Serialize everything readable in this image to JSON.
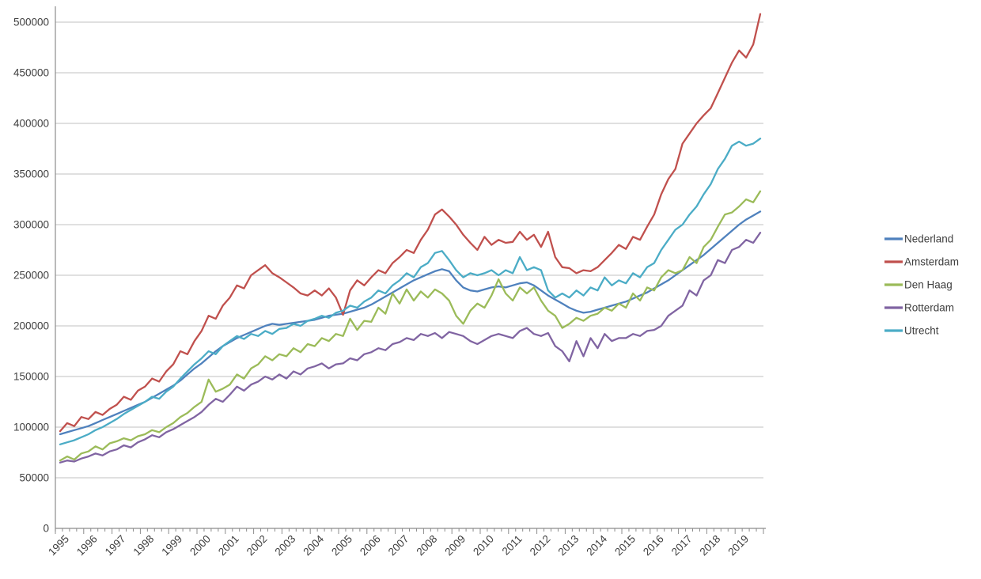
{
  "chart_data": {
    "type": "line",
    "title": "",
    "xlabel": "",
    "ylabel": "",
    "ylim": [
      0,
      500000
    ],
    "y_tick_step": 50000,
    "grid": "horizontal",
    "legend_position": "right",
    "points_per_year": 4,
    "x_tick_labels": [
      "1995",
      "1996",
      "1997",
      "1998",
      "1999",
      "2000",
      "2001",
      "2002",
      "2003",
      "2004",
      "2005",
      "2006",
      "2007",
      "2008",
      "2009",
      "2010",
      "2011",
      "2012",
      "2013",
      "2014",
      "2015",
      "2016",
      "2017",
      "2018",
      "2019"
    ],
    "series": [
      {
        "name": "Nederland",
        "color": "#4F81BD",
        "values": [
          93000,
          95000,
          97000,
          99000,
          101000,
          104000,
          107000,
          110000,
          113000,
          116000,
          119000,
          122000,
          125000,
          129000,
          133000,
          137000,
          141000,
          146000,
          152000,
          158000,
          163000,
          169000,
          175000,
          180000,
          184000,
          188000,
          191000,
          194000,
          197000,
          200000,
          202000,
          201000,
          202000,
          203000,
          204000,
          205000,
          206000,
          208000,
          210000,
          211000,
          212000,
          214000,
          216000,
          218000,
          221000,
          225000,
          229000,
          233000,
          237000,
          241000,
          245000,
          248000,
          251000,
          254000,
          256000,
          254000,
          245000,
          238000,
          235000,
          234000,
          236000,
          238000,
          239000,
          238000,
          240000,
          242000,
          243000,
          240000,
          235000,
          230000,
          226000,
          222000,
          218000,
          215000,
          213000,
          214000,
          216000,
          218000,
          220000,
          222000,
          224000,
          227000,
          230000,
          233000,
          237000,
          241000,
          245000,
          250000,
          255000,
          260000,
          265000,
          270000,
          276000,
          282000,
          288000,
          294000,
          300000,
          305000,
          309000,
          313000
        ]
      },
      {
        "name": "Amsterdam",
        "color": "#C0504D",
        "values": [
          96000,
          104000,
          101000,
          110000,
          108000,
          115000,
          112000,
          118000,
          122000,
          130000,
          127000,
          136000,
          140000,
          148000,
          145000,
          155000,
          162000,
          175000,
          172000,
          185000,
          195000,
          210000,
          207000,
          220000,
          228000,
          240000,
          237000,
          250000,
          255000,
          260000,
          252000,
          248000,
          243000,
          238000,
          232000,
          230000,
          235000,
          230000,
          237000,
          228000,
          211000,
          235000,
          245000,
          240000,
          248000,
          255000,
          252000,
          262000,
          268000,
          275000,
          272000,
          285000,
          295000,
          310000,
          315000,
          308000,
          300000,
          290000,
          282000,
          275000,
          288000,
          280000,
          285000,
          282000,
          283000,
          293000,
          285000,
          290000,
          278000,
          293000,
          268000,
          258000,
          257000,
          252000,
          255000,
          254000,
          258000,
          265000,
          272000,
          280000,
          276000,
          288000,
          285000,
          298000,
          310000,
          330000,
          345000,
          355000,
          380000,
          390000,
          400000,
          408000,
          415000,
          430000,
          445000,
          460000,
          472000,
          465000,
          478000,
          508000
        ]
      },
      {
        "name": "Den Haag",
        "color": "#9BBB59",
        "values": [
          67000,
          71000,
          68000,
          74000,
          76000,
          81000,
          78000,
          84000,
          86000,
          89000,
          87000,
          91000,
          93000,
          97000,
          95000,
          100000,
          104000,
          110000,
          114000,
          120000,
          125000,
          147000,
          135000,
          138000,
          142000,
          152000,
          148000,
          158000,
          162000,
          170000,
          166000,
          172000,
          170000,
          178000,
          174000,
          182000,
          180000,
          188000,
          185000,
          192000,
          190000,
          207000,
          196000,
          205000,
          204000,
          218000,
          212000,
          232000,
          222000,
          236000,
          225000,
          234000,
          228000,
          236000,
          232000,
          225000,
          210000,
          202000,
          215000,
          222000,
          218000,
          230000,
          246000,
          232000,
          225000,
          238000,
          232000,
          238000,
          225000,
          215000,
          210000,
          198000,
          202000,
          208000,
          205000,
          210000,
          212000,
          218000,
          215000,
          222000,
          218000,
          232000,
          225000,
          238000,
          235000,
          248000,
          255000,
          252000,
          255000,
          268000,
          262000,
          278000,
          285000,
          298000,
          310000,
          312000,
          318000,
          325000,
          322000,
          333000
        ]
      },
      {
        "name": "Rotterdam",
        "color": "#8064A2",
        "values": [
          65000,
          67000,
          66000,
          69000,
          71000,
          74000,
          72000,
          76000,
          78000,
          82000,
          80000,
          85000,
          88000,
          92000,
          90000,
          95000,
          98000,
          102000,
          106000,
          110000,
          115000,
          122000,
          128000,
          125000,
          132000,
          140000,
          136000,
          142000,
          145000,
          150000,
          147000,
          152000,
          148000,
          155000,
          152000,
          158000,
          160000,
          163000,
          158000,
          162000,
          163000,
          168000,
          166000,
          172000,
          174000,
          178000,
          176000,
          182000,
          184000,
          188000,
          186000,
          192000,
          190000,
          193000,
          188000,
          194000,
          192000,
          190000,
          185000,
          182000,
          186000,
          190000,
          192000,
          190000,
          188000,
          195000,
          198000,
          192000,
          190000,
          193000,
          180000,
          175000,
          165000,
          185000,
          170000,
          188000,
          178000,
          192000,
          185000,
          188000,
          188000,
          192000,
          190000,
          195000,
          196000,
          200000,
          210000,
          215000,
          220000,
          235000,
          230000,
          245000,
          250000,
          265000,
          262000,
          275000,
          278000,
          285000,
          282000,
          292000
        ]
      },
      {
        "name": "Utrecht",
        "color": "#4BACC6",
        "values": [
          83000,
          85000,
          87000,
          90000,
          93000,
          97000,
          100000,
          104000,
          108000,
          113000,
          117000,
          121000,
          125000,
          130000,
          128000,
          135000,
          140000,
          148000,
          155000,
          162000,
          168000,
          175000,
          172000,
          180000,
          185000,
          190000,
          187000,
          192000,
          190000,
          195000,
          192000,
          197000,
          198000,
          202000,
          200000,
          205000,
          207000,
          210000,
          208000,
          213000,
          215000,
          220000,
          218000,
          224000,
          228000,
          235000,
          232000,
          240000,
          245000,
          252000,
          248000,
          258000,
          262000,
          272000,
          274000,
          265000,
          255000,
          248000,
          252000,
          250000,
          252000,
          255000,
          250000,
          255000,
          252000,
          268000,
          255000,
          258000,
          255000,
          235000,
          228000,
          232000,
          228000,
          235000,
          230000,
          238000,
          235000,
          248000,
          240000,
          245000,
          242000,
          252000,
          248000,
          258000,
          262000,
          275000,
          285000,
          295000,
          300000,
          310000,
          318000,
          330000,
          340000,
          355000,
          365000,
          378000,
          382000,
          378000,
          380000,
          385000
        ]
      }
    ]
  },
  "style": {
    "grid_color": "#c0c0c0",
    "axis_color": "#8c8c8c",
    "tick_color": "#8c8c8c",
    "text_color": "#404040",
    "background": "#ffffff"
  }
}
